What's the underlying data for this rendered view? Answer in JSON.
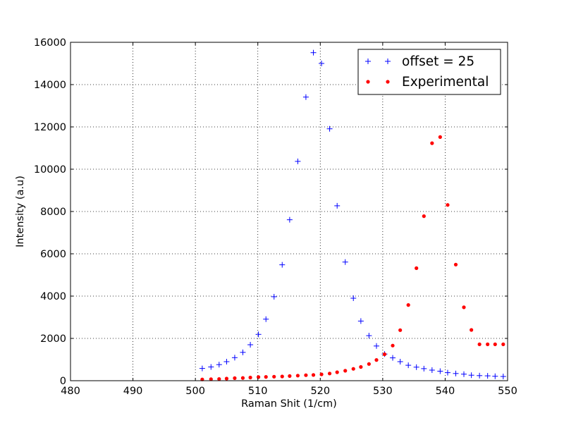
{
  "chart_data": {
    "type": "scatter",
    "xlabel": "Raman Shit (1/cm)",
    "ylabel": "Intensity (a.u)",
    "xlim": [
      480,
      550
    ],
    "ylim": [
      0,
      16000
    ],
    "x_ticks": [
      480,
      490,
      500,
      510,
      520,
      530,
      540,
      550
    ],
    "y_ticks": [
      0,
      2000,
      4000,
      6000,
      8000,
      10000,
      12000,
      14000,
      16000
    ],
    "grid": true,
    "legend_position": "top-right",
    "series": [
      {
        "name": "offset = 25",
        "marker": "plus",
        "color": "#0000ff",
        "x": [
          501.1,
          502.5,
          503.8,
          505.0,
          506.3,
          507.6,
          508.8,
          510.1,
          511.3,
          512.6,
          513.9,
          515.1,
          516.4,
          517.7,
          518.9,
          520.2,
          521.5,
          522.7,
          524.0,
          525.3,
          526.5,
          527.8,
          529.0,
          530.3,
          531.6,
          532.8,
          534.1,
          535.4,
          536.6,
          537.9,
          539.2,
          540.4,
          541.7,
          543.0,
          544.2,
          545.5,
          546.8,
          548.0,
          549.3
        ],
        "y": [
          580,
          650,
          760,
          900,
          1090,
          1340,
          1700,
          2190,
          2910,
          3970,
          5480,
          7610,
          10370,
          13410,
          15510,
          15000,
          11910,
          8270,
          5610,
          3900,
          2820,
          2130,
          1640,
          1260,
          1080,
          900,
          730,
          640,
          570,
          500,
          450,
          380,
          340,
          310,
          260,
          240,
          230,
          210,
          200
        ]
      },
      {
        "name": "Experimental",
        "marker": "dot",
        "color": "#ff0000",
        "x": [
          501.1,
          502.5,
          503.8,
          505.0,
          506.3,
          507.6,
          508.8,
          510.1,
          511.3,
          512.6,
          513.9,
          515.1,
          516.4,
          517.7,
          518.9,
          520.2,
          521.5,
          522.7,
          524.0,
          525.3,
          526.5,
          527.8,
          529.0,
          530.3,
          531.6,
          532.8,
          534.1,
          535.4,
          536.6,
          537.9,
          539.2,
          540.4,
          541.7,
          543.0,
          544.2,
          545.5,
          546.8,
          548.0,
          549.3
        ],
        "y": [
          60,
          70,
          80,
          100,
          120,
          130,
          150,
          170,
          180,
          190,
          200,
          220,
          240,
          260,
          270,
          300,
          340,
          400,
          470,
          560,
          650,
          790,
          980,
          1250,
          1660,
          2390,
          3580,
          5320,
          7780,
          11230,
          11520,
          8310,
          5490,
          3470,
          2400,
          1720,
          1720,
          1720,
          1720
        ]
      }
    ]
  }
}
